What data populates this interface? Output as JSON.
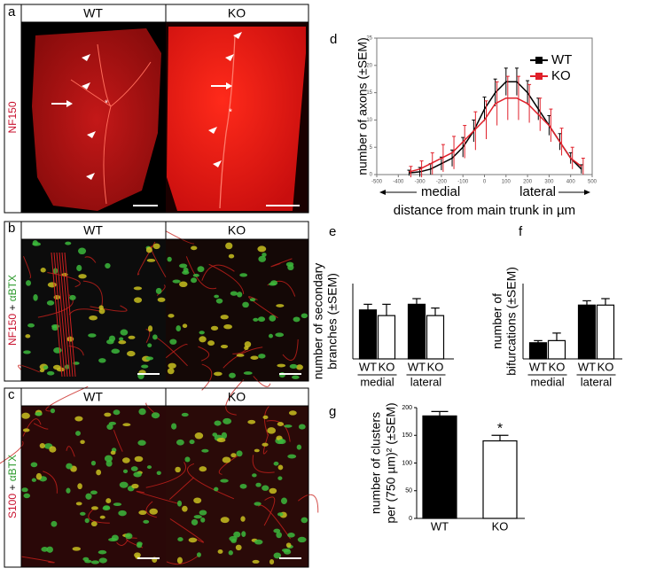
{
  "panel_letters": [
    "a",
    "b",
    "c",
    "d",
    "e",
    "f",
    "g"
  ],
  "image_panels": [
    {
      "headers": [
        "WT",
        "KO"
      ],
      "side_label": [
        {
          "text": "NF150",
          "color": "#c8102e"
        }
      ]
    },
    {
      "headers": [
        "WT",
        "KO"
      ],
      "side_label": [
        {
          "text": "NF150",
          "color": "#c8102e"
        },
        {
          "text": " + ",
          "color": "#000000"
        },
        {
          "text": "αBTX",
          "color": "#2e9a2e"
        }
      ]
    },
    {
      "headers": [
        "WT",
        "KO"
      ],
      "side_label": [
        {
          "text": "S100",
          "color": "#c8102e"
        },
        {
          "text": " + ",
          "color": "#000000"
        },
        {
          "text": "αBTX",
          "color": "#2e9a2e"
        }
      ]
    }
  ],
  "chart_data": [
    {
      "type": "line",
      "ylabel": "number of axons (±SEM)",
      "xlabel": "distance from main trunk in µm",
      "annotations": [
        "medial",
        "lateral"
      ],
      "x": [
        -350,
        -300,
        -250,
        -200,
        -150,
        -100,
        -50,
        0,
        50,
        100,
        150,
        200,
        250,
        300,
        350,
        400,
        450
      ],
      "series": [
        {
          "name": "WT",
          "color": "#000000",
          "values": [
            0.3,
            0.5,
            1,
            2,
            3,
            5,
            8,
            12,
            15,
            17,
            17,
            15,
            12,
            9,
            6,
            3,
            1
          ],
          "errors": [
            0.5,
            0.8,
            1,
            1.2,
            1.5,
            1.8,
            2,
            2.2,
            2.5,
            2.5,
            2.5,
            2.2,
            2,
            1.8,
            1.5,
            1,
            0.8
          ]
        },
        {
          "name": "KO",
          "color": "#e0202a",
          "values": [
            0.5,
            1,
            2,
            3,
            4,
            6,
            8,
            10,
            13,
            14,
            14,
            13,
            11,
            9,
            6,
            3,
            1.5
          ],
          "errors": [
            1,
            1.5,
            2,
            2.5,
            3,
            3,
            3.5,
            3.5,
            4,
            4,
            4,
            3.5,
            3,
            3,
            2.5,
            2,
            1.5
          ]
        }
      ],
      "xlim": [
        -500,
        500
      ],
      "xticks": [
        -500,
        -400,
        -300,
        -200,
        -100,
        0,
        100,
        200,
        300,
        400,
        500
      ],
      "ylim": [
        0,
        25
      ],
      "yticks": [
        0,
        5,
        10,
        15,
        20,
        25
      ]
    },
    {
      "type": "grouped-bar",
      "ylabel": [
        "number of secondary",
        "branches (±SEM)"
      ],
      "categories": [
        "WT",
        "KO",
        "WT",
        "KO"
      ],
      "groups": [
        "medial",
        "lateral"
      ],
      "colors": [
        "#000000",
        "#ffffff"
      ],
      "values": [
        13,
        11.5,
        14.5,
        11.5
      ],
      "errors": [
        1.5,
        3,
        1.5,
        2
      ],
      "ylim": [
        0,
        20
      ]
    },
    {
      "type": "grouped-bar",
      "ylabel": [
        "number of",
        "bifurcations (±SEM)"
      ],
      "categories": [
        "WT",
        "KO",
        "WT",
        "KO"
      ],
      "groups": [
        "medial",
        "lateral"
      ],
      "colors": [
        "#000000",
        "#ffffff"
      ],
      "values": [
        1.5,
        1.7,
        5,
        5
      ],
      "errors": [
        0.2,
        0.7,
        0.4,
        0.6
      ],
      "ylim": [
        0,
        7
      ]
    },
    {
      "type": "bar",
      "ylabel": [
        "number of clusters",
        "per (750 µm)² (±SEM)"
      ],
      "categories": [
        "WT",
        "KO"
      ],
      "colors": [
        "#000000",
        "#ffffff"
      ],
      "values": [
        185,
        140
      ],
      "errors": [
        8,
        10
      ],
      "ylim": [
        0,
        200
      ],
      "yticks": [
        0,
        50,
        100,
        150,
        200
      ],
      "annotations": [
        "*"
      ]
    }
  ]
}
